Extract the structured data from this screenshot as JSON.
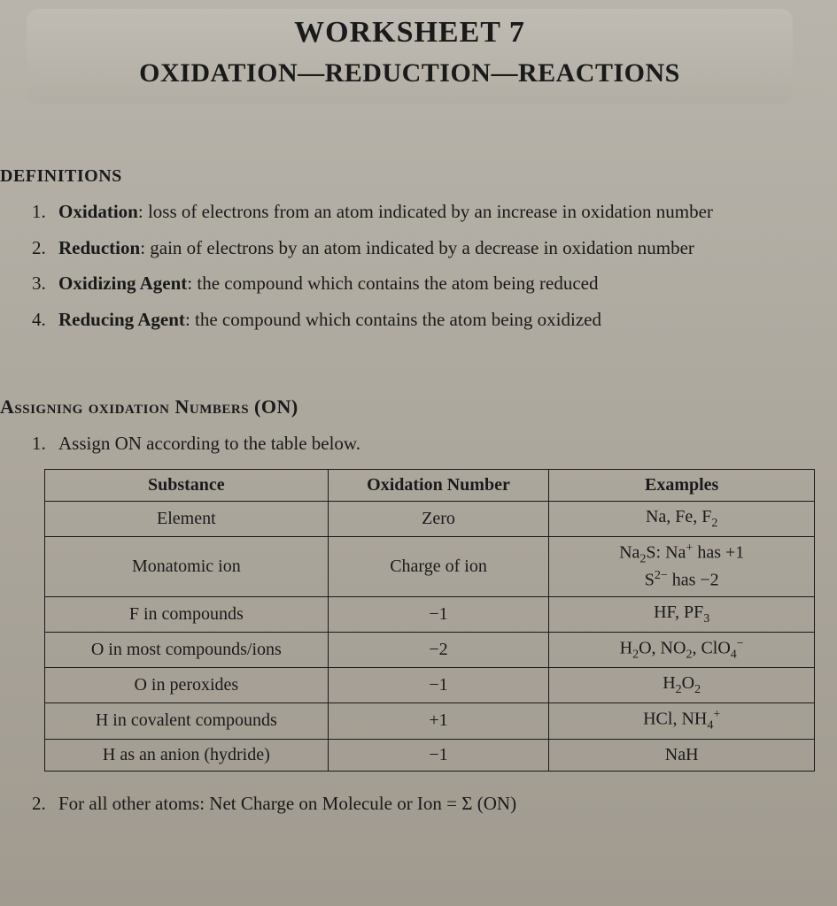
{
  "header": {
    "title": "WORKSHEET 7",
    "subtitle": "OXIDATION—REDUCTION—REACTIONS"
  },
  "definitions": {
    "heading": "DEFINITIONS",
    "items": [
      {
        "num": "1.",
        "term": "Oxidation",
        "text": ": loss of electrons from an atom indicated by an increase in oxidation number"
      },
      {
        "num": "2.",
        "term": "Reduction",
        "text": ": gain of electrons by an atom indicated by a decrease in oxidation number"
      },
      {
        "num": "3.",
        "term": "Oxidizing Agent",
        "text": ": the compound which contains the atom being reduced"
      },
      {
        "num": "4.",
        "term": "Reducing Agent",
        "text": ": the compound which contains the atom being oxidized"
      }
    ]
  },
  "assigning": {
    "heading": "Assigning oxidation Numbers (ON)",
    "item1_num": "1.",
    "item1_text": "Assign ON according to the table below.",
    "item2_num": "2.",
    "item2_text": "For all other atoms: Net Charge on Molecule or Ion = Σ (ON)"
  },
  "table": {
    "headers": [
      "Substance",
      "Oxidation Number",
      "Examples"
    ],
    "rows": [
      {
        "substance": "Element",
        "on": "Zero",
        "examples_html": "Na, Fe, F<sub>2</sub>"
      },
      {
        "substance": "Monatomic ion",
        "on": "Charge of ion",
        "examples_html": "Na<sub>2</sub>S: Na<sup>+</sup> has +1<br>S<sup>2−</sup> has −2"
      },
      {
        "substance": "F in compounds",
        "on": "−1",
        "examples_html": "HF, PF<sub>3</sub>"
      },
      {
        "substance": "O in most compounds/ions",
        "on": "−2",
        "examples_html": "H<sub>2</sub>O, NO<sub>2</sub>, ClO<sub>4</sub><sup>−</sup>"
      },
      {
        "substance": "O in peroxides",
        "on": "−1",
        "examples_html": "H<sub>2</sub>O<sub>2</sub>"
      },
      {
        "substance": "H in covalent compounds",
        "on": "+1",
        "examples_html": "HCl, NH<sub>4</sub><sup>+</sup>"
      },
      {
        "substance": "H as an anion (hydride)",
        "on": "−1",
        "examples_html": "NaH"
      }
    ],
    "col_widths": [
      "320px",
      "250px",
      "300px"
    ],
    "border_color": "#1a1a1a",
    "background": "transparent"
  },
  "colors": {
    "page_bg_top": "#b8b4ab",
    "page_bg_bottom": "#a09a8f",
    "text": "#1a1a1a"
  },
  "typography": {
    "title_fontsize": 34,
    "subtitle_fontsize": 30,
    "body_fontsize": 21,
    "heading_fontsize": 20,
    "font_family": "Georgia, Times New Roman, serif"
  }
}
